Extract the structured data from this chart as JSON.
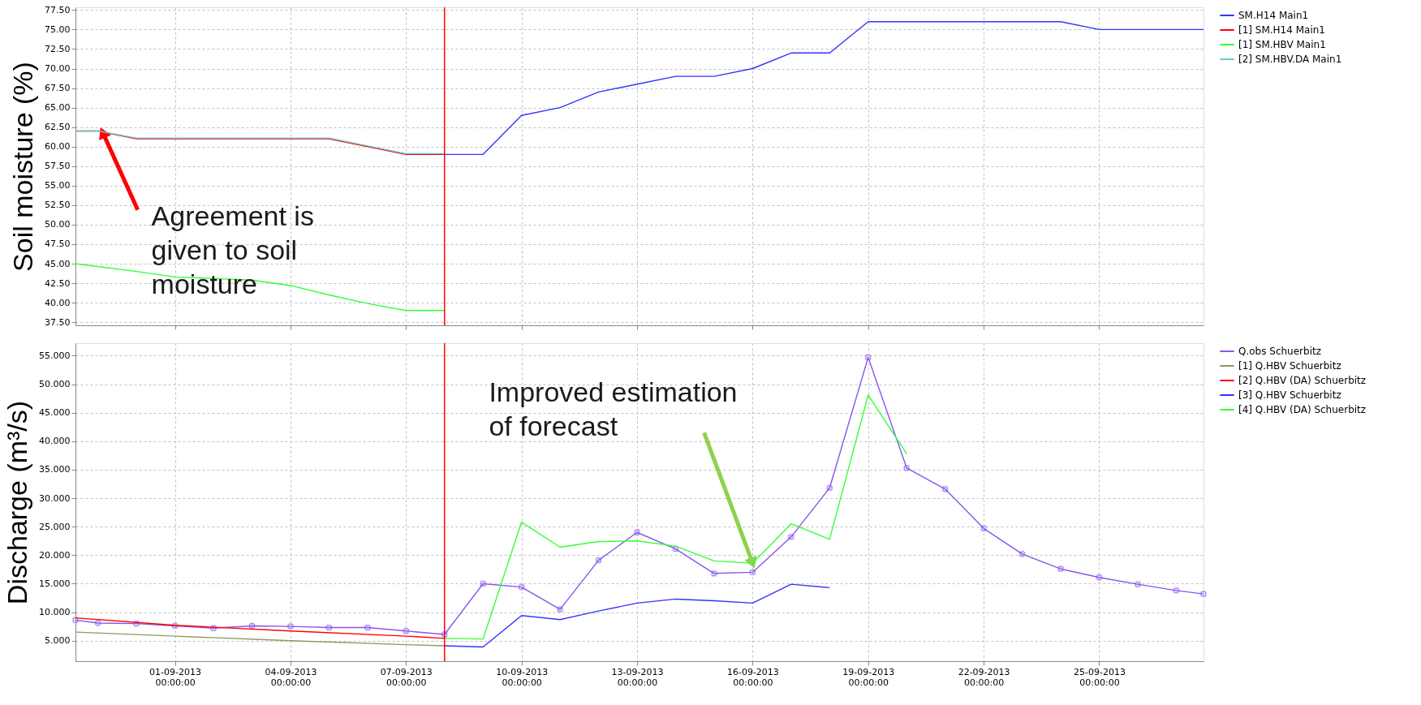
{
  "chart_data": [
    {
      "type": "line",
      "ylabel": "Soil moisture (%)",
      "grid": true,
      "legend": "top right",
      "tick_labels": "y",
      "xlim": [
        "2013-08-29T10:00",
        "2013-09-27T17:00"
      ],
      "xticks": [
        {
          "value": "2013-09-01",
          "label": null
        },
        {
          "value": "2013-09-04",
          "label": null
        },
        {
          "value": "2013-09-07",
          "label": null
        },
        {
          "value": "2013-09-10",
          "label": null
        },
        {
          "value": "2013-09-13",
          "label": null
        },
        {
          "value": "2013-09-16",
          "label": null
        },
        {
          "value": "2013-09-19",
          "label": null
        },
        {
          "value": "2013-09-22",
          "label": null
        },
        {
          "value": "2013-09-25",
          "label": null
        }
      ],
      "ylim": [
        37.1,
        77.85
      ],
      "yticks": [
        {
          "value": 37.5,
          "label": "37.50"
        },
        {
          "value": 40,
          "label": "40.00"
        },
        {
          "value": 42.5,
          "label": "42.50"
        },
        {
          "value": 45,
          "label": "45.00"
        },
        {
          "value": 47.5,
          "label": "47.50"
        },
        {
          "value": 50,
          "label": "50.00"
        },
        {
          "value": 52.5,
          "label": "52.50"
        },
        {
          "value": 55,
          "label": "55.00"
        },
        {
          "value": 57.5,
          "label": "57.50"
        },
        {
          "value": 60,
          "label": "60.00"
        },
        {
          "value": 62.5,
          "label": "62.50"
        },
        {
          "value": 65,
          "label": "65.00"
        },
        {
          "value": 67.5,
          "label": "67.50"
        },
        {
          "value": 70,
          "label": "70.00"
        },
        {
          "value": 72.5,
          "label": "72.50"
        },
        {
          "value": 75,
          "label": "75.00"
        },
        {
          "value": 77.5,
          "label": "77.50"
        }
      ],
      "ref_lines": [
        {
          "axis": "x",
          "value": "2013-09-08",
          "color": "#ff0000"
        }
      ],
      "annotations": [
        {
          "text": "Agreement is given to soil moisture",
          "x": "2013-08-30T03:00",
          "y": 61.8
        }
      ],
      "series": [
        {
          "name": "SM.H14 Main1",
          "color": "#3333ff",
          "x": [
            "2013-09-08",
            "2013-09-09",
            "2013-09-10",
            "2013-09-11",
            "2013-09-12",
            "2013-09-13",
            "2013-09-14",
            "2013-09-15",
            "2013-09-16",
            "2013-09-17",
            "2013-09-18",
            "2013-09-19",
            "2013-09-20",
            "2013-09-21",
            "2013-09-22",
            "2013-09-23",
            "2013-09-24",
            "2013-09-25",
            "2013-09-26",
            "2013-09-27",
            "2013-09-27T17:00"
          ],
          "values": [
            59,
            59,
            64,
            65,
            67,
            68,
            69,
            69,
            70,
            72,
            72,
            76,
            76,
            76,
            76,
            76,
            76,
            75,
            75,
            75,
            75
          ]
        },
        {
          "name": "[1] SM.H14 Main1",
          "color": "#ff0000",
          "x": [
            "2013-08-29T10:00",
            "2013-08-30",
            "2013-08-31",
            "2013-09-05",
            "2013-09-07",
            "2013-09-08"
          ],
          "values": [
            62.0,
            62.0,
            61.0,
            61.0,
            59.0,
            59.0
          ]
        },
        {
          "name": "[1] SM.HBV Main1",
          "color": "#33ff33",
          "x": [
            "2013-08-29T10:00",
            "2013-08-31",
            "2013-09-01",
            "2013-09-03",
            "2013-09-04",
            "2013-09-05",
            "2013-09-06",
            "2013-09-07",
            "2013-09-08"
          ],
          "values": [
            45.0,
            44.0,
            43.3,
            42.9,
            42.2,
            41.0,
            39.9,
            39.0,
            39.0
          ]
        },
        {
          "name": "[2] SM.HBV.DA Main1",
          "color": "#66cccc",
          "x": [
            "2013-08-29T10:00",
            "2013-08-30",
            "2013-08-31",
            "2013-09-05",
            "2013-09-07",
            "2013-09-08"
          ],
          "values": [
            62.0,
            62.0,
            61.1,
            61.1,
            59.1,
            59.1
          ]
        }
      ]
    },
    {
      "type": "line",
      "ylabel": "Discharge (m³/s)",
      "grid": true,
      "legend": "top right",
      "xlim": [
        "2013-08-29T10:00",
        "2013-09-27T17:00"
      ],
      "xticks": [
        {
          "value": "2013-09-01",
          "label": "01-09-2013 00:00:00"
        },
        {
          "value": "2013-09-04",
          "label": "04-09-2013 00:00:00"
        },
        {
          "value": "2013-09-07",
          "label": "07-09-2013 00:00:00"
        },
        {
          "value": "2013-09-10",
          "label": "10-09-2013 00:00:00"
        },
        {
          "value": "2013-09-13",
          "label": "13-09-2013 00:00:00"
        },
        {
          "value": "2013-09-16",
          "label": "16-09-2013 00:00:00"
        },
        {
          "value": "2013-09-19",
          "label": "19-09-2013 00:00:00"
        },
        {
          "value": "2013-09-22",
          "label": "22-09-2013 00:00:00"
        },
        {
          "value": "2013-09-25",
          "label": "25-09-2013 00:00:00"
        }
      ],
      "ylim": [
        1.4,
        57.2
      ],
      "yticks": [
        {
          "value": 5,
          "label": "5.000"
        },
        {
          "value": 10,
          "label": "10.000"
        },
        {
          "value": 15,
          "label": "15.000"
        },
        {
          "value": 20,
          "label": "20.000"
        },
        {
          "value": 25,
          "label": "25.000"
        },
        {
          "value": 30,
          "label": "30.000"
        },
        {
          "value": 35,
          "label": "35.000"
        },
        {
          "value": 40,
          "label": "40.000"
        },
        {
          "value": 45,
          "label": "45.000"
        },
        {
          "value": 50,
          "label": "50.000"
        },
        {
          "value": 55,
          "label": "55.000"
        }
      ],
      "ref_lines": [
        {
          "axis": "x",
          "value": "2013-09-08",
          "color": "#ff0000"
        }
      ],
      "annotations": [
        {
          "text": "Improved estimation of forecast",
          "x": "2013-09-16",
          "y": 18.6
        }
      ],
      "series": [
        {
          "name": "Q.obs Schuerbitz",
          "color": "#8855ee",
          "marker": "cross",
          "x": [
            "2013-08-29T10:00",
            "2013-08-30",
            "2013-08-31",
            "2013-09-01",
            "2013-09-02",
            "2013-09-03",
            "2013-09-04",
            "2013-09-05",
            "2013-09-06",
            "2013-09-07",
            "2013-09-08",
            "2013-09-09",
            "2013-09-10",
            "2013-09-11",
            "2013-09-12",
            "2013-09-13",
            "2013-09-14",
            "2013-09-15",
            "2013-09-16",
            "2013-09-17",
            "2013-09-18",
            "2013-09-19",
            "2013-09-20",
            "2013-09-21",
            "2013-09-22",
            "2013-09-23",
            "2013-09-24",
            "2013-09-25",
            "2013-09-26",
            "2013-09-27",
            "2013-09-27T17:00"
          ],
          "values": [
            8.6,
            8.1,
            8.0,
            7.6,
            7.2,
            7.6,
            7.5,
            7.3,
            7.3,
            6.7,
            6.1,
            15.0,
            14.4,
            10.5,
            19.1,
            24.0,
            21.1,
            16.8,
            17.0,
            23.2,
            31.8,
            54.7,
            35.3,
            31.6,
            24.7,
            20.2,
            17.6,
            16.1,
            14.9,
            13.8,
            13.2
          ]
        },
        {
          "name": "[1] Q.HBV Schuerbitz",
          "color": "#8a9a5b",
          "x": [
            "2013-08-29T10:00",
            "2013-09-01",
            "2013-09-04",
            "2013-09-07",
            "2013-09-08"
          ],
          "values": [
            6.5,
            5.8,
            5.0,
            4.3,
            4.1
          ]
        },
        {
          "name": "[2] Q.HBV (DA) Schuerbitz",
          "color": "#ff0000",
          "x": [
            "2013-08-29T10:00",
            "2013-09-01",
            "2013-09-04",
            "2013-09-07",
            "2013-09-08"
          ],
          "values": [
            9.0,
            7.7,
            6.7,
            5.8,
            5.4
          ]
        },
        {
          "name": "[3] Q.HBV Schuerbitz",
          "color": "#3333ff",
          "x": [
            "2013-09-08",
            "2013-09-09",
            "2013-09-10",
            "2013-09-11",
            "2013-09-12",
            "2013-09-13",
            "2013-09-14",
            "2013-09-15",
            "2013-09-16",
            "2013-09-17",
            "2013-09-18"
          ],
          "values": [
            4.1,
            3.9,
            9.4,
            8.7,
            10.2,
            11.6,
            12.3,
            12.0,
            11.6,
            14.9,
            14.3
          ]
        },
        {
          "name": "[4] Q.HBV (DA) Schuerbitz",
          "color": "#33ff33",
          "x": [
            "2013-09-08",
            "2013-09-09",
            "2013-09-10",
            "2013-09-11",
            "2013-09-12",
            "2013-09-13",
            "2013-09-14",
            "2013-09-15",
            "2013-09-16",
            "2013-09-17",
            "2013-09-18",
            "2013-09-19",
            "2013-09-20"
          ],
          "values": [
            5.4,
            5.3,
            25.8,
            21.4,
            22.4,
            22.5,
            21.6,
            19.0,
            18.6,
            25.5,
            22.8,
            48.1,
            37.8
          ]
        }
      ]
    }
  ]
}
